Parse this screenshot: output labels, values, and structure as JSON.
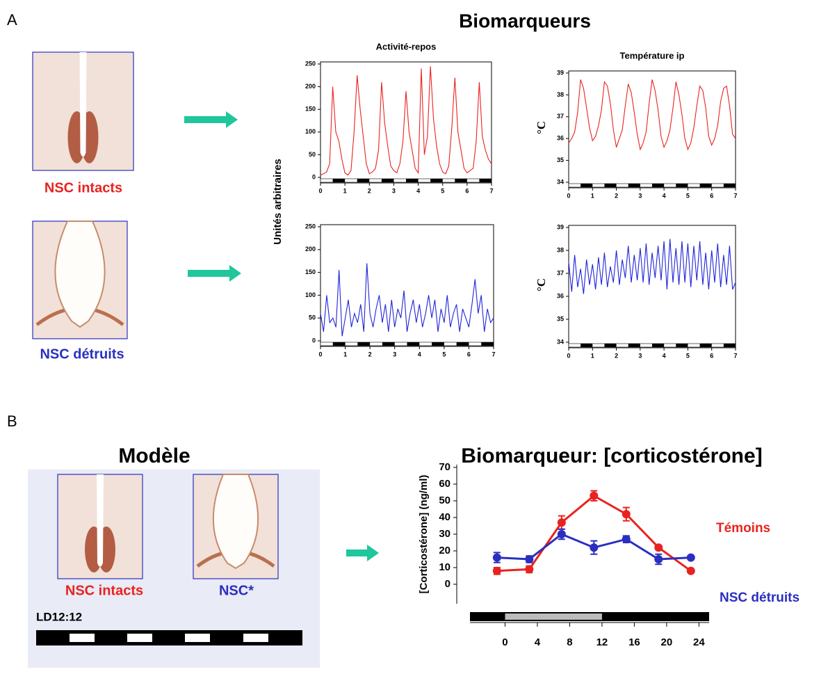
{
  "panels": {
    "a": "A",
    "b": "B"
  },
  "titles": {
    "biomarkers": "Biomarqueurs",
    "model": "Modèle",
    "cort": "Biomarqueur: [corticostérone]"
  },
  "images": {
    "intact_a": "NSC intacts",
    "lesion_a": "NSC détruits",
    "intact_b": "NSC intacts",
    "lesion_b": "NSC*",
    "ld": "LD12:12"
  },
  "shared_ylabel": "Unités arbitraires",
  "chart_data": [
    {
      "type": "line",
      "title": "Activité-repos",
      "xlim": [
        0,
        7
      ],
      "xticks": [
        0,
        1,
        2,
        3,
        4,
        5,
        6,
        7
      ],
      "ylim": [
        0,
        250
      ],
      "yticks": [
        0,
        50,
        100,
        150,
        200,
        250
      ],
      "x": [
        0,
        0.125,
        0.25,
        0.375,
        0.5,
        0.625,
        0.75,
        0.875,
        1,
        1.125,
        1.25,
        1.375,
        1.5,
        1.625,
        1.75,
        1.875,
        2,
        2.125,
        2.25,
        2.375,
        2.5,
        2.625,
        2.75,
        2.875,
        3,
        3.125,
        3.25,
        3.375,
        3.5,
        3.625,
        3.75,
        3.875,
        4,
        4.125,
        4.25,
        4.375,
        4.5,
        4.625,
        4.75,
        4.875,
        5,
        5.125,
        5.25,
        5.375,
        5.5,
        5.625,
        5.75,
        5.875,
        6,
        6.125,
        6.25,
        6.375,
        6.5,
        6.625,
        6.75,
        6.875,
        7
      ],
      "series": [
        {
          "color": "#e8231f",
          "values": [
            5,
            8,
            12,
            30,
            200,
            100,
            80,
            40,
            10,
            5,
            15,
            100,
            225,
            150,
            90,
            30,
            8,
            12,
            20,
            60,
            210,
            120,
            70,
            25,
            15,
            10,
            30,
            80,
            190,
            100,
            60,
            20,
            10,
            240,
            50,
            90,
            245,
            130,
            70,
            30,
            12,
            8,
            25,
            110,
            220,
            100,
            60,
            20,
            10,
            15,
            20,
            80,
            210,
            90,
            60,
            40,
            30
          ]
        }
      ]
    },
    {
      "type": "line",
      "title": "Température ip",
      "ylabel": "°C",
      "xlim": [
        0,
        7
      ],
      "xticks": [
        0,
        1,
        2,
        3,
        4,
        5,
        6,
        7
      ],
      "ylim": [
        34,
        39
      ],
      "yticks": [
        34,
        35,
        36,
        37,
        38,
        39
      ],
      "x": [
        0,
        0.125,
        0.25,
        0.375,
        0.5,
        0.625,
        0.75,
        0.875,
        1,
        1.125,
        1.25,
        1.375,
        1.5,
        1.625,
        1.75,
        1.875,
        2,
        2.125,
        2.25,
        2.375,
        2.5,
        2.625,
        2.75,
        2.875,
        3,
        3.125,
        3.25,
        3.375,
        3.5,
        3.625,
        3.75,
        3.875,
        4,
        4.125,
        4.25,
        4.375,
        4.5,
        4.625,
        4.75,
        4.875,
        5,
        5.125,
        5.25,
        5.375,
        5.5,
        5.625,
        5.75,
        5.875,
        6,
        6.125,
        6.25,
        6.375,
        6.5,
        6.625,
        6.75,
        6.875,
        7
      ],
      "series": [
        {
          "color": "#e8231f",
          "values": [
            35.8,
            36,
            36.3,
            37.2,
            38.7,
            38.3,
            37.4,
            36.5,
            35.9,
            36.1,
            36.6,
            37.3,
            38.6,
            38.4,
            37.6,
            36.4,
            35.6,
            36,
            36.4,
            37.5,
            38.5,
            38.1,
            37.2,
            36.2,
            35.5,
            35.8,
            36.3,
            37.6,
            38.7,
            38.2,
            37.3,
            36.1,
            35.6,
            35.9,
            36.4,
            37.4,
            38.6,
            38,
            37.1,
            36,
            35.5,
            35.8,
            36.5,
            37.5,
            38.4,
            38.2,
            37.4,
            36.1,
            35.7,
            36,
            36.6,
            37.7,
            38.3,
            38.4,
            37.5,
            36.2,
            36
          ]
        }
      ]
    },
    {
      "type": "line",
      "xlim": [
        0,
        7
      ],
      "xticks": [
        0,
        1,
        2,
        3,
        4,
        5,
        6,
        7
      ],
      "ylim": [
        0,
        250
      ],
      "yticks": [
        0,
        50,
        100,
        150,
        200,
        250
      ],
      "x": [
        0,
        0.125,
        0.25,
        0.375,
        0.5,
        0.625,
        0.75,
        0.875,
        1,
        1.125,
        1.25,
        1.375,
        1.5,
        1.625,
        1.75,
        1.875,
        2,
        2.125,
        2.25,
        2.375,
        2.5,
        2.625,
        2.75,
        2.875,
        3,
        3.125,
        3.25,
        3.375,
        3.5,
        3.625,
        3.75,
        3.875,
        4,
        4.125,
        4.25,
        4.375,
        4.5,
        4.625,
        4.75,
        4.875,
        5,
        5.125,
        5.25,
        5.375,
        5.5,
        5.625,
        5.75,
        5.875,
        6,
        6.125,
        6.25,
        6.375,
        6.5,
        6.625,
        6.75,
        6.875,
        7
      ],
      "series": [
        {
          "color": "#1f24d8",
          "values": [
            60,
            20,
            100,
            40,
            50,
            30,
            155,
            10,
            50,
            90,
            30,
            60,
            40,
            80,
            20,
            170,
            60,
            30,
            70,
            100,
            40,
            80,
            20,
            90,
            30,
            70,
            50,
            110,
            20,
            60,
            90,
            40,
            80,
            30,
            60,
            100,
            50,
            90,
            20,
            70,
            40,
            100,
            30,
            60,
            80,
            20,
            70,
            50,
            30,
            80,
            135,
            60,
            100,
            20,
            70,
            40,
            50
          ]
        }
      ]
    },
    {
      "type": "line",
      "ylabel": "°C",
      "xlim": [
        0,
        7
      ],
      "xticks": [
        0,
        1,
        2,
        3,
        4,
        5,
        6,
        7
      ],
      "ylim": [
        34,
        39
      ],
      "yticks": [
        34,
        35,
        36,
        37,
        38,
        39
      ],
      "x": [
        0,
        0.125,
        0.25,
        0.375,
        0.5,
        0.625,
        0.75,
        0.875,
        1,
        1.125,
        1.25,
        1.375,
        1.5,
        1.625,
        1.75,
        1.875,
        2,
        2.125,
        2.25,
        2.375,
        2.5,
        2.625,
        2.75,
        2.875,
        3,
        3.125,
        3.25,
        3.375,
        3.5,
        3.625,
        3.75,
        3.875,
        4,
        4.125,
        4.25,
        4.375,
        4.5,
        4.625,
        4.75,
        4.875,
        5,
        5.125,
        5.25,
        5.375,
        5.5,
        5.625,
        5.75,
        5.875,
        6,
        6.125,
        6.25,
        6.375,
        6.5,
        6.625,
        6.75,
        6.875,
        7
      ],
      "series": [
        {
          "color": "#1f24d8",
          "values": [
            37.5,
            36.2,
            37.8,
            36.4,
            37.2,
            36.1,
            37.6,
            36.5,
            37.4,
            36.3,
            37.7,
            36.5,
            37.9,
            36.4,
            37.3,
            36.6,
            38,
            36.5,
            37.6,
            36.8,
            38.2,
            36.6,
            37.8,
            36.7,
            38.1,
            36.6,
            38.3,
            36.5,
            37.9,
            36.8,
            38.2,
            36.7,
            38.4,
            36.3,
            38.5,
            36.6,
            38.1,
            36.5,
            38.4,
            36.6,
            38.3,
            36.4,
            38.2,
            36.7,
            38.4,
            36.5,
            37.9,
            36.3,
            38,
            36.6,
            38.3,
            36.4,
            37.8,
            36.5,
            38.2,
            36.3,
            36.6
          ]
        }
      ]
    },
    {
      "type": "errorline",
      "ylabel": "[Corticostérone]  (ng/ml)",
      "xlim": [
        -4,
        25
      ],
      "xticks": [
        0,
        4,
        8,
        12,
        16,
        20,
        24
      ],
      "ylim": [
        -10,
        70
      ],
      "yticks": [
        0,
        10,
        20,
        30,
        40,
        50,
        60,
        70
      ],
      "x": [
        -1,
        3,
        7,
        11,
        15,
        19,
        23
      ],
      "series": [
        {
          "name": "Témoins",
          "color": "#e8231f",
          "values": [
            8,
            9,
            37,
            53,
            42,
            22,
            8
          ],
          "errors": [
            2,
            2,
            4,
            3,
            4,
            1,
            1
          ]
        },
        {
          "name": "NSC détruits",
          "color": "#2a2fc0",
          "values": [
            16,
            15,
            30,
            22,
            27,
            15,
            16
          ],
          "errors": [
            3,
            2,
            3,
            4,
            2,
            3,
            1
          ]
        }
      ]
    }
  ]
}
